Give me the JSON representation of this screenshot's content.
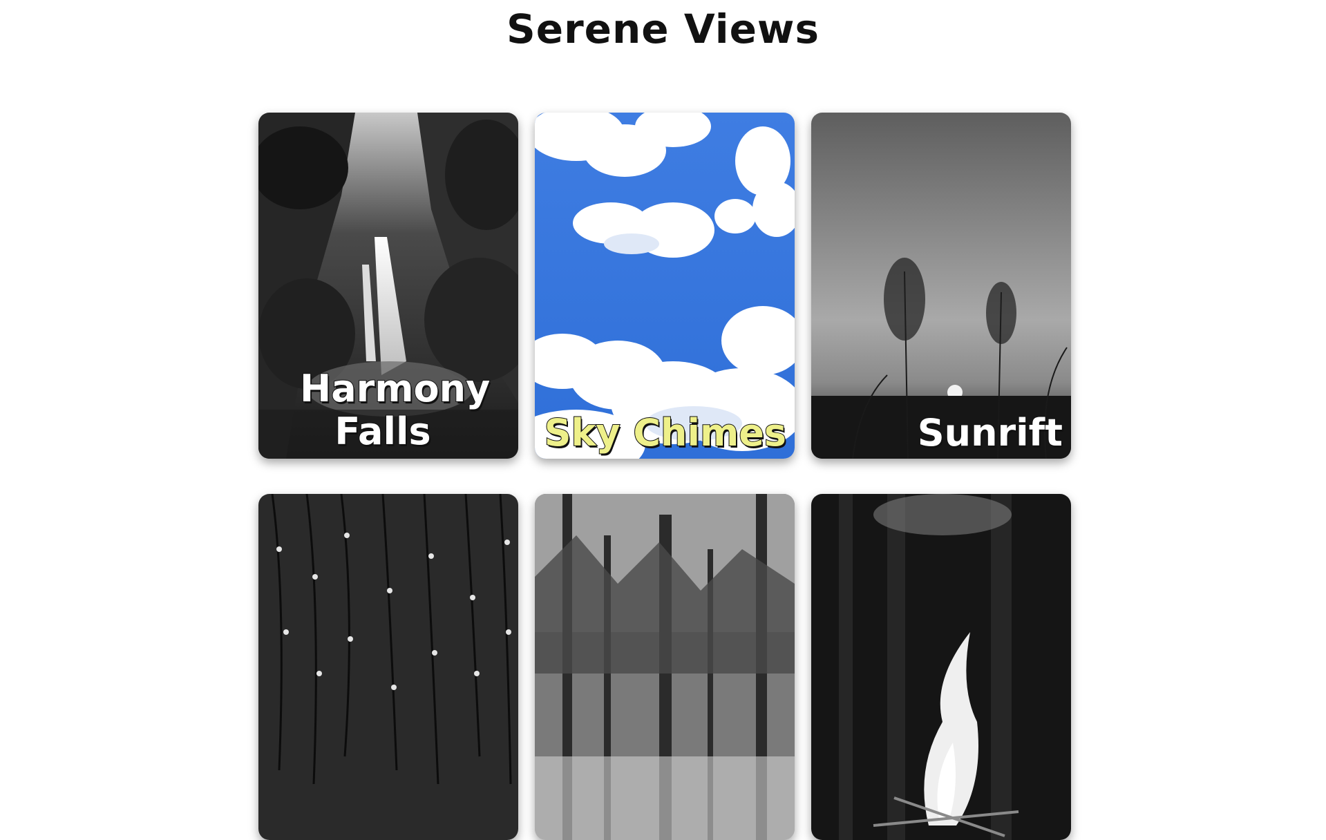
{
  "page": {
    "title": "Serene Views"
  },
  "cards": [
    {
      "label": "Harmony Falls",
      "scene": "waterfall-image",
      "highlight": false
    },
    {
      "label": "Sky Chimes",
      "scene": "sky-image",
      "highlight": true
    },
    {
      "label": "Sunrift",
      "scene": "sunset-grass-image",
      "highlight": false
    },
    {
      "label": "",
      "scene": "raindrops-image",
      "highlight": false
    },
    {
      "label": "",
      "scene": "forest-image",
      "highlight": false
    },
    {
      "label": "",
      "scene": "campfire-image",
      "highlight": false
    }
  ],
  "colors": {
    "label_text": "#ffffff",
    "label_highlight": "#eef08a",
    "sky_blue": "#3a78e0"
  }
}
